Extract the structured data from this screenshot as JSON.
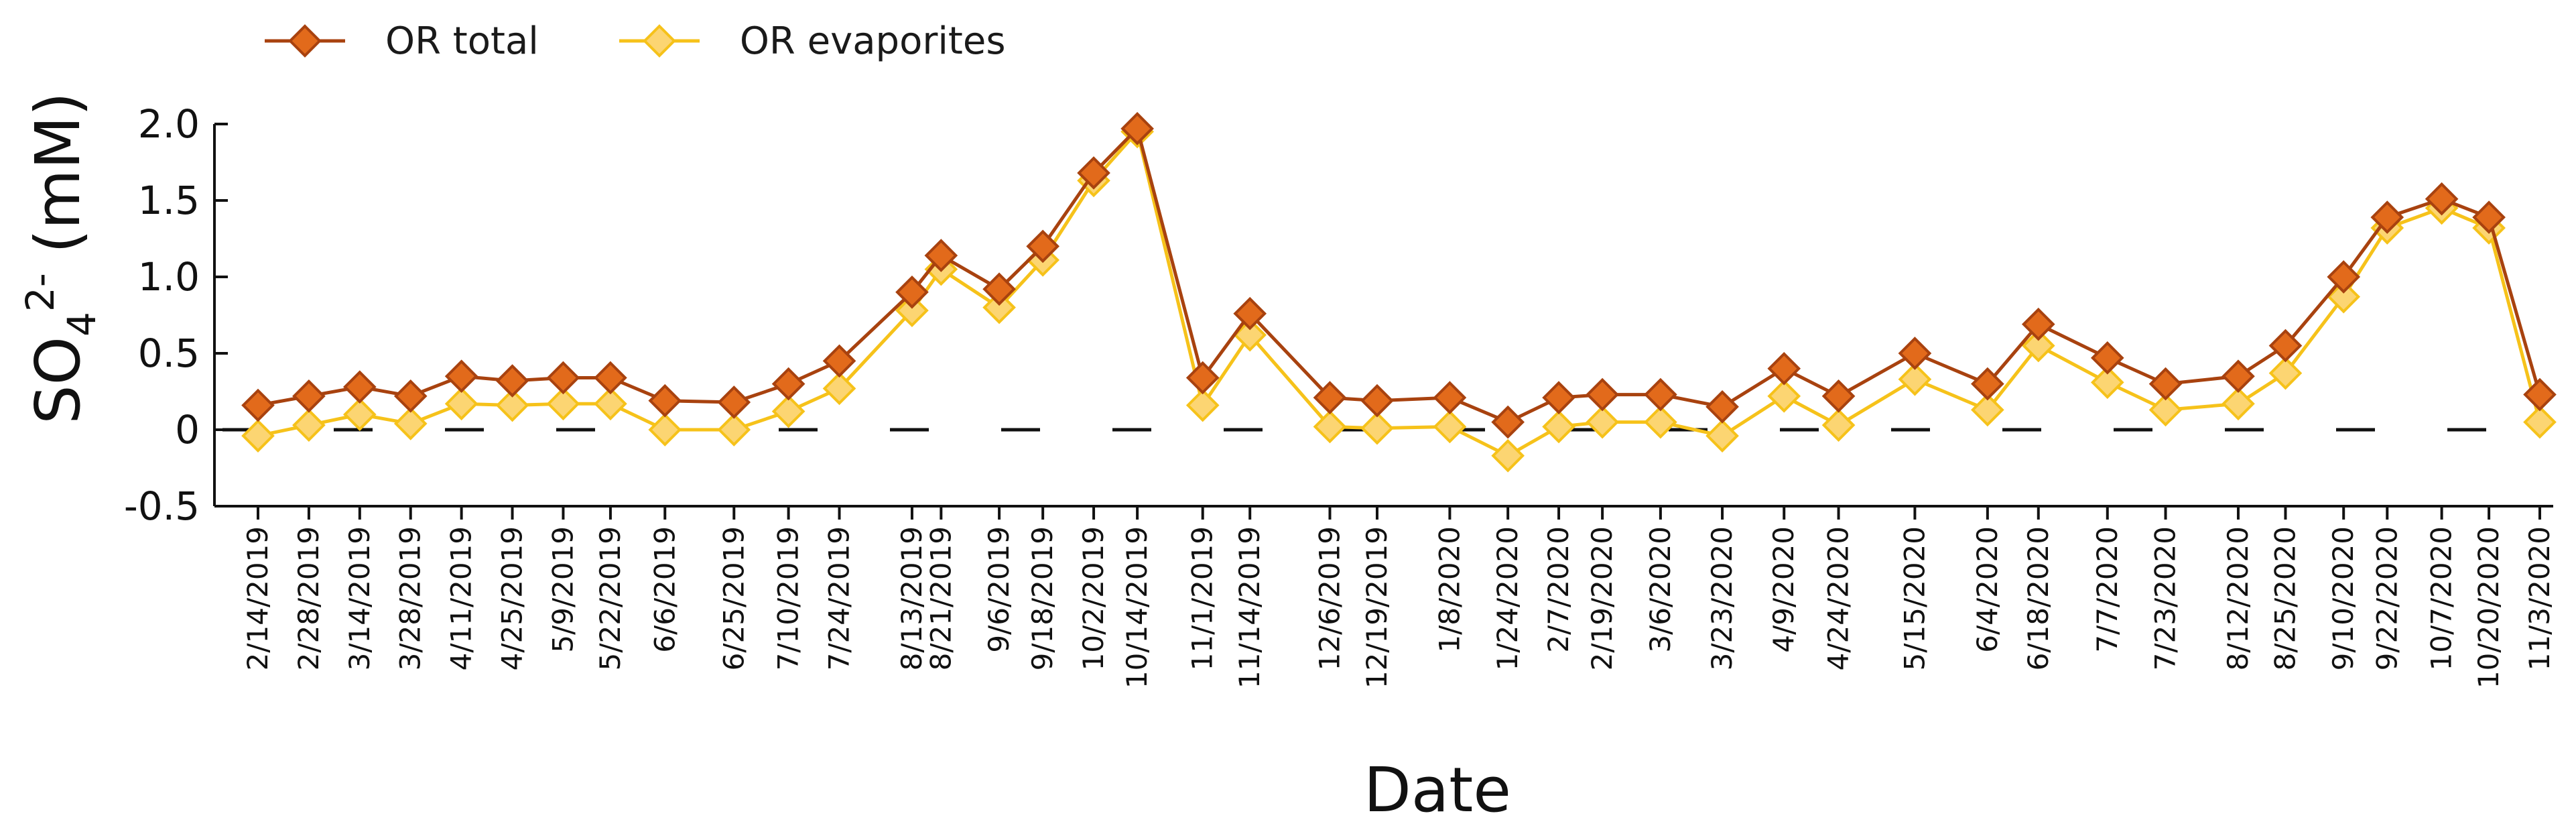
{
  "legend": {
    "total_label": "OR total",
    "evaporites_label": "OR evaporites"
  },
  "colors": {
    "total_line": "#a8420f",
    "total_marker": "#e26a1b",
    "evaporites_line": "#f6c21a",
    "evaporites_marker": "#fcd572",
    "axis": "#111111"
  },
  "chart_data": {
    "type": "line",
    "xlabel": "Date",
    "ylabel": "SO4 2- (mM)",
    "ylim": [
      -0.5,
      2.0
    ],
    "yticks": [
      -0.5,
      0,
      0.5,
      1.0,
      1.5,
      2.0
    ],
    "ytick_labels": [
      "-0.5",
      "0",
      "0.5",
      "1.0",
      "1.5",
      "2.0"
    ],
    "zero_line": "dashed",
    "grid": false,
    "legend_position": "top-left",
    "x": [
      "2/14/2019",
      "2/28/2019",
      "3/14/2019",
      "3/28/2019",
      "4/11/2019",
      "4/25/2019",
      "5/9/2019",
      "5/22/2019",
      "6/6/2019",
      "6/25/2019",
      "7/10/2019",
      "7/24/2019",
      "8/13/2019",
      "8/21/2019",
      "9/6/2019",
      "9/18/2019",
      "10/2/2019",
      "10/14/2019",
      "11/1/2019",
      "11/14/2019",
      "12/6/2019",
      "12/19/2019",
      "1/8/2020",
      "1/24/2020",
      "2/7/2020",
      "2/19/2020",
      "3/6/2020",
      "3/23/2020",
      "4/9/2020",
      "4/24/2020",
      "5/15/2020",
      "6/4/2020",
      "6/18/2020",
      "7/7/2020",
      "7/23/2020",
      "8/12/2020",
      "8/25/2020",
      "9/10/2020",
      "9/22/2020",
      "10/7/2020",
      "10/20/2020",
      "11/3/2020"
    ],
    "series": [
      {
        "name": "OR total",
        "values": [
          0.16,
          0.22,
          0.28,
          0.22,
          0.35,
          0.32,
          0.34,
          0.34,
          0.19,
          0.18,
          0.3,
          0.45,
          0.9,
          1.14,
          0.92,
          1.2,
          1.68,
          1.97,
          0.34,
          0.76,
          0.21,
          0.19,
          0.21,
          0.05,
          0.21,
          0.23,
          0.23,
          0.15,
          0.4,
          0.22,
          0.5,
          0.3,
          0.69,
          0.47,
          0.3,
          0.35,
          0.55,
          1.0,
          1.39,
          1.51,
          1.39,
          0.23
        ]
      },
      {
        "name": "OR evaporites",
        "values": [
          -0.04,
          0.03,
          0.1,
          0.04,
          0.17,
          0.16,
          0.17,
          0.17,
          0.0,
          0.0,
          0.12,
          0.27,
          0.78,
          1.05,
          0.8,
          1.11,
          1.63,
          1.95,
          0.16,
          0.62,
          0.02,
          0.01,
          0.02,
          -0.17,
          0.02,
          0.05,
          0.05,
          -0.04,
          0.22,
          0.03,
          0.33,
          0.13,
          0.55,
          0.31,
          0.13,
          0.17,
          0.37,
          0.87,
          1.32,
          1.45,
          1.32,
          0.05
        ]
      }
    ]
  }
}
